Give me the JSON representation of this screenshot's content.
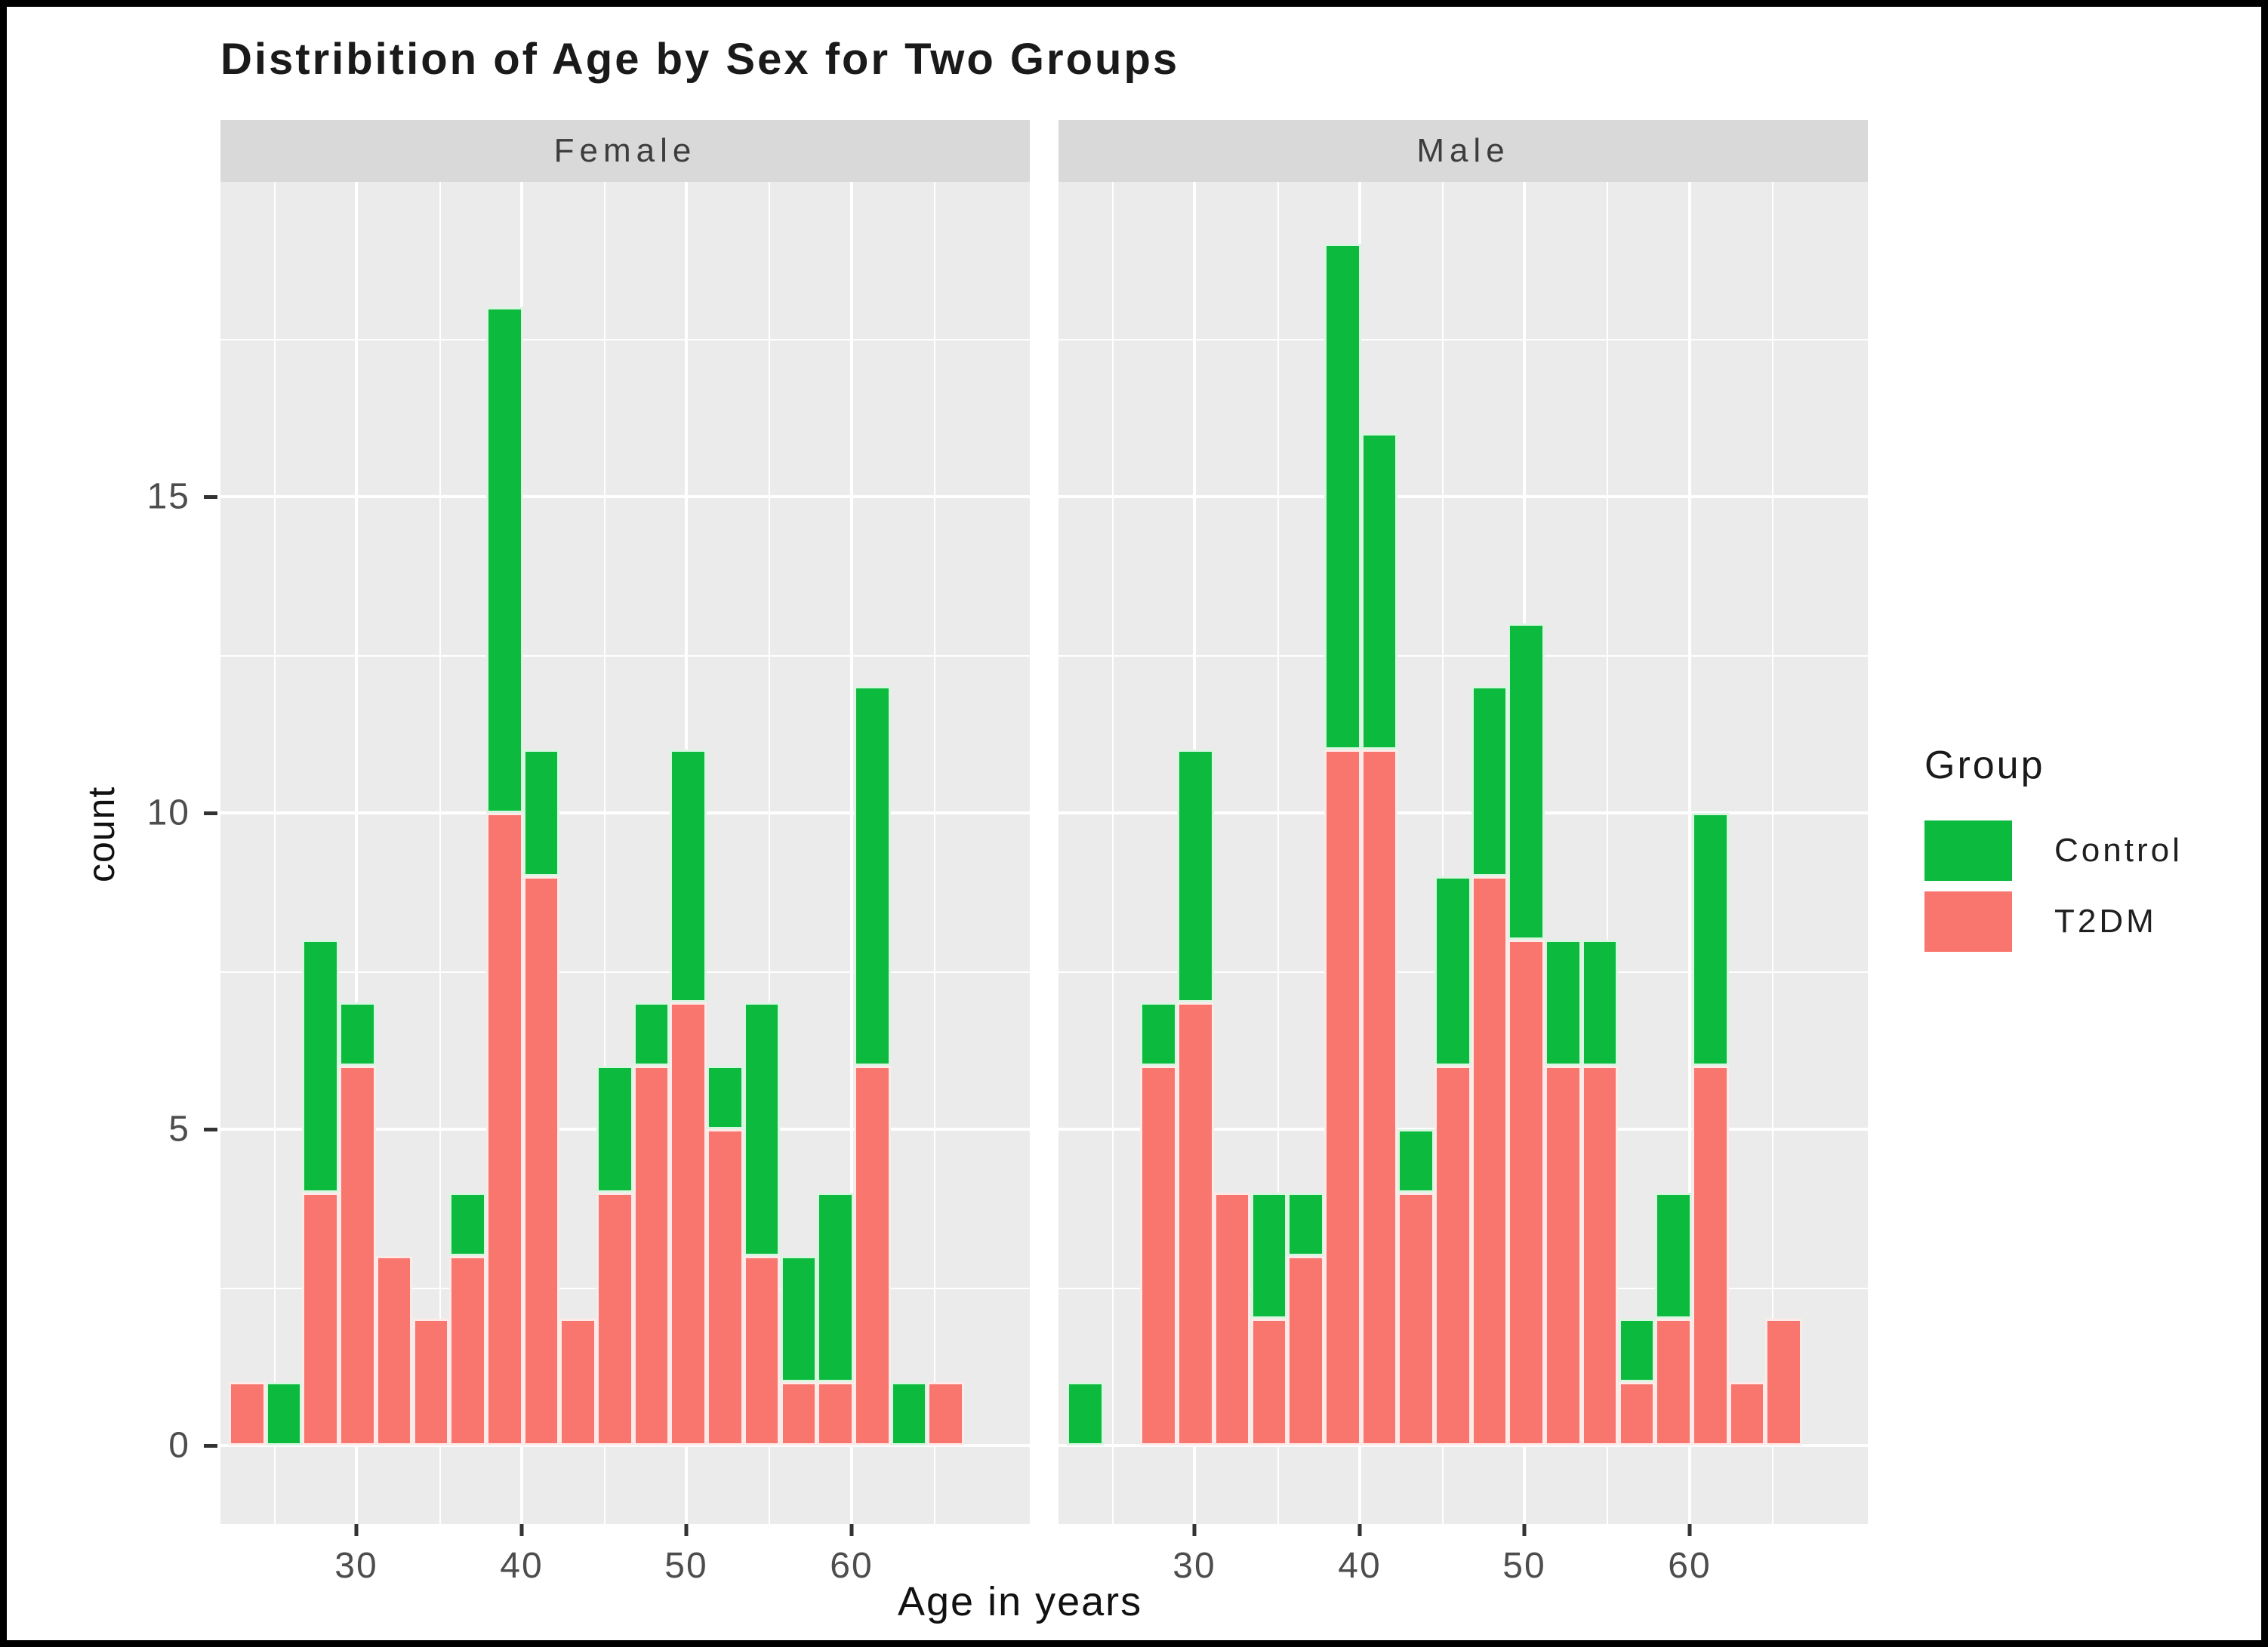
{
  "title": "Distribition of Age by Sex for Two Groups",
  "chart_data": {
    "type": "bar",
    "subtype": "faceted-stacked-histogram",
    "title": "Distribition of Age by Sex for Two Groups",
    "xlabel": "Age in years",
    "ylabel": "count",
    "x_ticks": [
      30,
      40,
      50,
      60
    ],
    "y_ticks": [
      0,
      5,
      10,
      15
    ],
    "y_minor_gridlines": [
      2.5,
      7.5,
      12.5,
      17.5
    ],
    "ylim": [
      0,
      19.95
    ],
    "grid": true,
    "legend_position": "right",
    "bins": {
      "start_age": 23,
      "bin_width_years": 2.25,
      "n_bins": 20
    },
    "legend": {
      "title": "Group",
      "items": [
        {
          "label": "Control",
          "color": "#0CBA3E"
        },
        {
          "label": "T2DM",
          "color": "#F8766D"
        }
      ]
    },
    "facets": [
      {
        "label": "Female",
        "series": [
          {
            "name": "T2DM",
            "values": [
              1,
              0,
              4,
              6,
              3,
              2,
              3,
              10,
              9,
              2,
              4,
              6,
              7,
              5,
              3,
              1,
              1,
              6,
              0,
              1
            ]
          },
          {
            "name": "Control",
            "values": [
              0,
              1,
              4,
              1,
              0,
              0,
              1,
              8,
              2,
              0,
              2,
              1,
              4,
              1,
              4,
              2,
              3,
              6,
              1,
              0
            ]
          }
        ]
      },
      {
        "label": "Male",
        "series": [
          {
            "name": "T2DM",
            "values": [
              0,
              0,
              6,
              7,
              4,
              2,
              3,
              11,
              11,
              4,
              6,
              9,
              8,
              6,
              6,
              1,
              2,
              6,
              1,
              2
            ]
          },
          {
            "name": "Control",
            "values": [
              1,
              0,
              1,
              4,
              0,
              2,
              1,
              8,
              5,
              1,
              3,
              3,
              5,
              2,
              2,
              1,
              2,
              4,
              0,
              0
            ]
          }
        ]
      }
    ]
  },
  "colors": {
    "t2dm": "#F8766D",
    "control": "#0CBA3E",
    "panel_bg": "#EBEBEB",
    "strip_bg": "#D9D9D9",
    "gridline": "#FFFFFF",
    "tick_text": "#4D4D4D",
    "title_text": "#1A1A1A"
  }
}
